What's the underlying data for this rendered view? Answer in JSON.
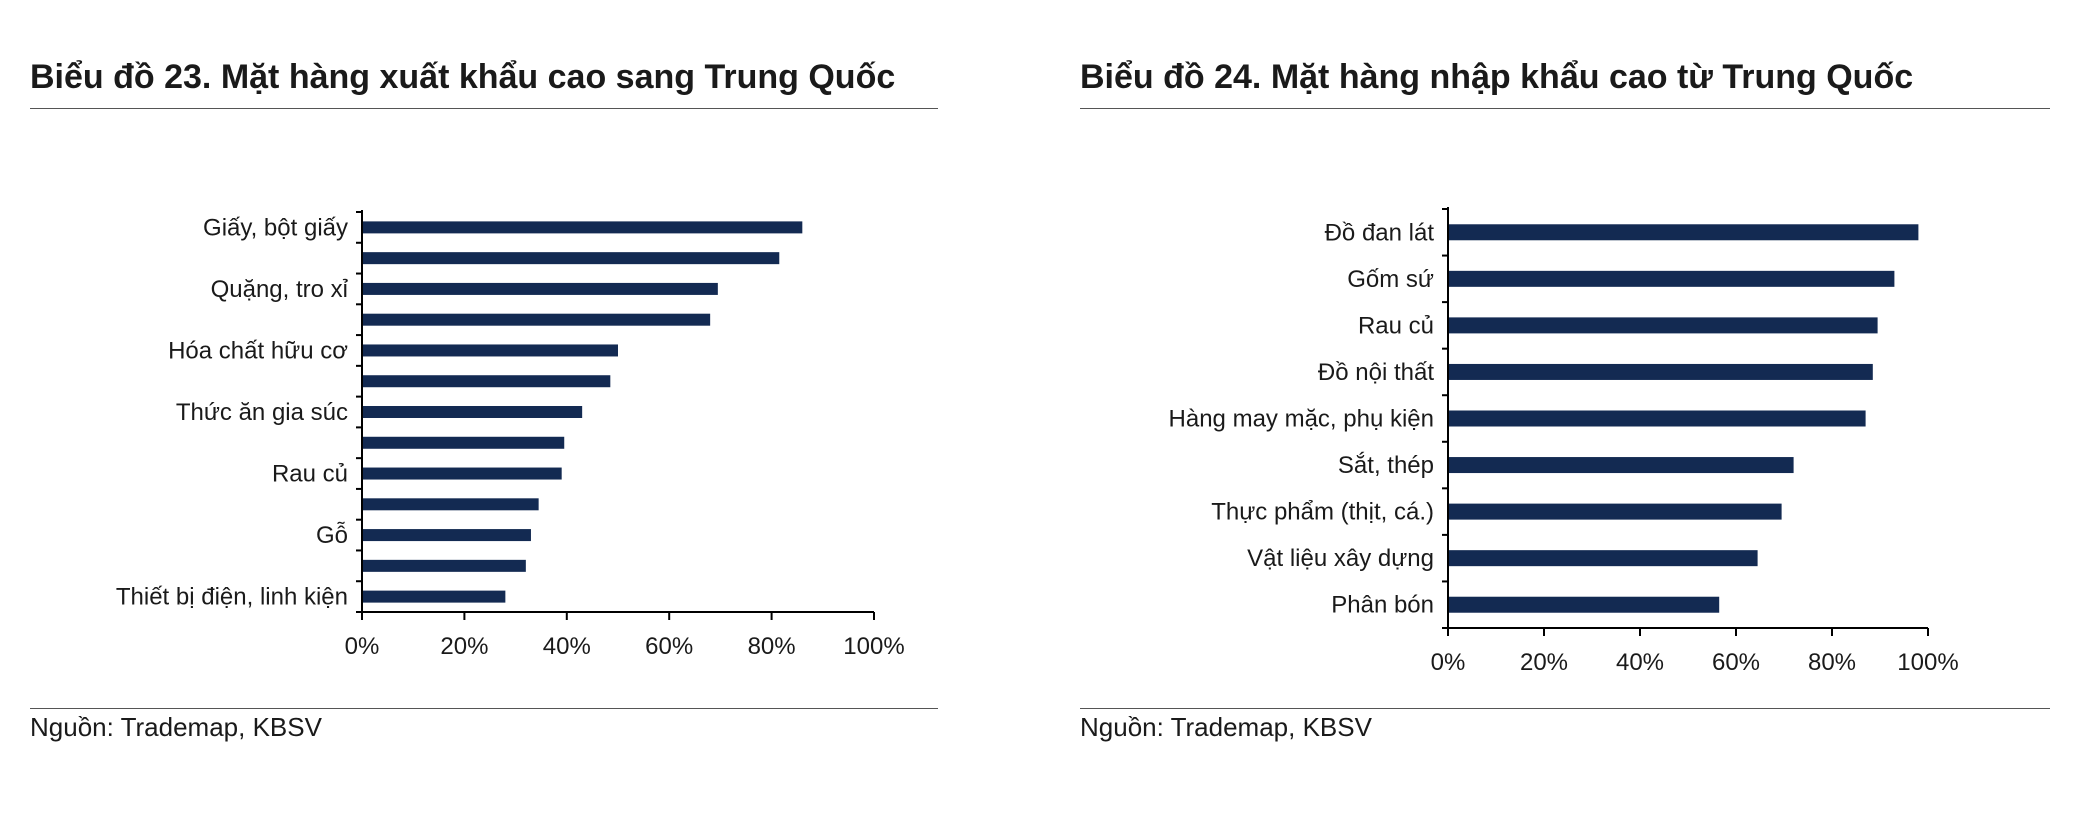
{
  "colors": {
    "bar": "#132a52",
    "axis": "#000000",
    "rule": "#555555"
  },
  "charts": {
    "left": {
      "title": "Biểu đồ 23. Mặt hàng xuất khẩu cao sang Trung Quốc",
      "source": "Nguồn: Trademap, KBSV"
    },
    "right": {
      "title": "Biểu đồ 24. Mặt hàng nhập khẩu cao từ Trung Quốc",
      "source": "Nguồn: Trademap, KBSV"
    }
  },
  "chart_data": [
    {
      "type": "bar",
      "orientation": "horizontal",
      "title": "Biểu đồ 23. Mặt hàng xuất khẩu cao sang Trung Quốc",
      "categories": [
        "Giấy, bột giấy",
        "",
        "Quặng, tro xỉ",
        "",
        "Hóa chất hữu cơ",
        "",
        "Thức ăn gia súc",
        "",
        "Rau củ",
        "",
        "Gỗ",
        "",
        "Thiết bị điện, linh kiện"
      ],
      "values": [
        86,
        81.5,
        69.5,
        68,
        50,
        48.5,
        43,
        39.5,
        39,
        34.5,
        33,
        32,
        28
      ],
      "unit": "%",
      "xlim": [
        0,
        100
      ],
      "xticks": [
        "0%",
        "20%",
        "40%",
        "60%",
        "80%",
        "100%"
      ],
      "grid": false,
      "legend": "none"
    },
    {
      "type": "bar",
      "orientation": "horizontal",
      "title": "Biểu đồ 24. Mặt hàng nhập khẩu cao từ Trung Quốc",
      "categories": [
        "Đồ đan lát",
        "Gốm sứ",
        "Rau củ",
        "Đồ nội thất",
        "Hàng may mặc, phụ kiện",
        "Sắt, thép",
        "Thực phẩm (thịt, cá.)",
        "Vật liệu xây dựng",
        "Phân bón"
      ],
      "values": [
        98,
        93,
        89.5,
        88.5,
        87,
        72,
        69.5,
        64.5,
        56.5
      ],
      "unit": "%",
      "xlim": [
        0,
        100
      ],
      "xticks": [
        "0%",
        "20%",
        "40%",
        "60%",
        "80%",
        "100%"
      ],
      "grid": false,
      "legend": "none"
    }
  ]
}
